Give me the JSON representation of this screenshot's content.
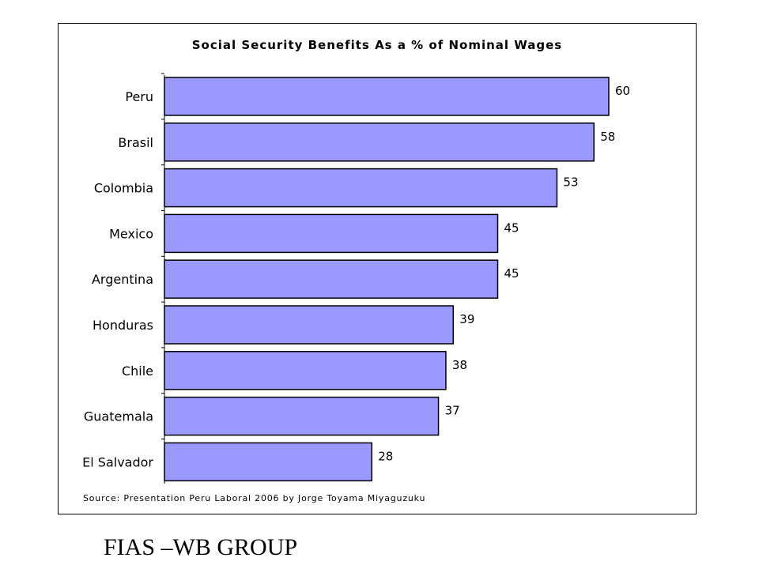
{
  "chart_data": {
    "type": "bar",
    "orientation": "horizontal",
    "title": "Social Security Benefits As a % of Nominal Wages",
    "categories": [
      "Peru",
      "Brasil",
      "Colombia",
      "Mexico",
      "Argentina",
      "Honduras",
      "Chile",
      "Guatemala",
      "El Salvador"
    ],
    "values": [
      60,
      58,
      53,
      45,
      45,
      39,
      38,
      37,
      28
    ],
    "data_labels": [
      "60",
      "58",
      "53",
      "45",
      "45",
      "39",
      "38",
      "37",
      "28"
    ],
    "xlim": [
      0,
      60
    ],
    "grid": false,
    "legend": "none",
    "bar_color": "#9999ff",
    "bar_edge_color": "#000000",
    "source": "Source: Presentation Peru Laboral 2006 by Jorge Toyama Miyaguzuku"
  },
  "footer": {
    "text": "FIAS –WB GROUP"
  }
}
